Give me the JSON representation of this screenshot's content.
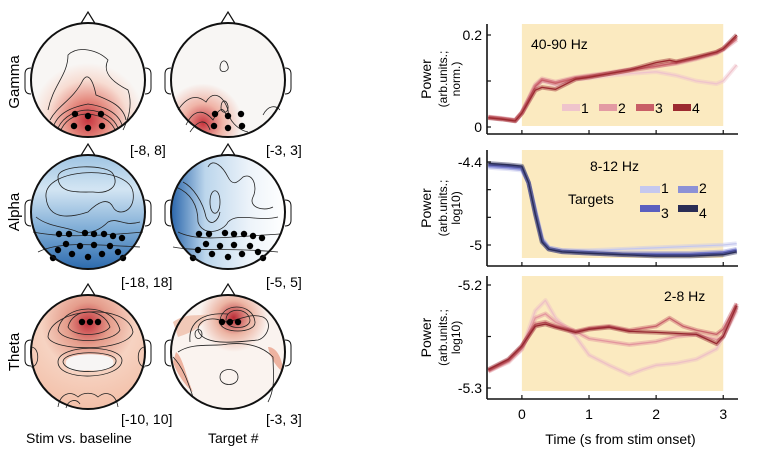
{
  "figure": {
    "topomaps": {
      "row_labels": [
        "Gamma",
        "Alpha",
        "Theta"
      ],
      "column_labels": [
        "Stim vs. baseline",
        "Target #"
      ],
      "colormaps": {
        "Gamma": "red",
        "Alpha": "blue",
        "Theta": "red"
      },
      "scale_labels": [
        [
          "[-8, 8]",
          "[-3, 3]"
        ],
        [
          "[-18, 18]",
          "[-5, 5]"
        ],
        [
          "[-10, 10]",
          "[-3, 3]"
        ]
      ],
      "colors": {
        "red_strong": "#c2303a",
        "red_light": "#f6d9cc",
        "blue_strong": "#1f5b9e",
        "blue_light": "#e3eef7",
        "outline": "#111111",
        "electrode": "#000000"
      }
    }
  },
  "chart_data": [
    {
      "type": "line",
      "title": "40-90 Hz",
      "xlabel": "",
      "ylabel": "Power",
      "ylabel_sub": "(arb.units.; norm.)",
      "xlim": [
        -0.52,
        3.22
      ],
      "ylim": [
        0,
        0.2
      ],
      "yticks": [
        0,
        0.1,
        0.2
      ],
      "ytick_labels": [
        "0",
        "",
        "0.2"
      ],
      "xticks": [
        0,
        1,
        2,
        3
      ],
      "shaded_interval": [
        0,
        3
      ],
      "shade_color": "#fbeac0",
      "grid": false,
      "legend": {
        "placement": "bottom-right",
        "title": "",
        "entries": [
          "1",
          "2",
          "3",
          "4"
        ]
      },
      "series": [
        {
          "name": "1",
          "color": "#efc4cc",
          "x": [
            -0.5,
            -0.3,
            -0.1,
            0,
            0.2,
            0.3,
            0.5,
            0.8,
            1.0,
            1.3,
            1.6,
            2.0,
            2.3,
            2.6,
            2.9,
            3.0,
            3.2
          ],
          "y": [
            0.02,
            0.018,
            0.014,
            0.03,
            0.085,
            0.1,
            0.09,
            0.104,
            0.106,
            0.112,
            0.116,
            0.12,
            0.112,
            0.1,
            0.094,
            0.1,
            0.135
          ]
        },
        {
          "name": "2",
          "color": "#e39aa3",
          "x": [
            -0.5,
            -0.3,
            -0.1,
            0,
            0.2,
            0.3,
            0.5,
            0.8,
            1.0,
            1.3,
            1.6,
            2.0,
            2.3,
            2.6,
            2.9,
            3.0,
            3.2
          ],
          "y": [
            0.022,
            0.019,
            0.015,
            0.032,
            0.092,
            0.105,
            0.098,
            0.108,
            0.112,
            0.118,
            0.125,
            0.133,
            0.138,
            0.148,
            0.16,
            0.168,
            0.19
          ]
        },
        {
          "name": "3",
          "color": "#c85e66",
          "x": [
            -0.5,
            -0.3,
            -0.1,
            0,
            0.2,
            0.3,
            0.5,
            0.8,
            1.0,
            1.3,
            1.6,
            2.0,
            2.3,
            2.6,
            2.9,
            3.0,
            3.2
          ],
          "y": [
            0.021,
            0.018,
            0.014,
            0.031,
            0.088,
            0.102,
            0.095,
            0.106,
            0.11,
            0.116,
            0.123,
            0.132,
            0.14,
            0.15,
            0.162,
            0.17,
            0.195
          ]
        },
        {
          "name": "4",
          "color": "#9c2a30",
          "x": [
            -0.5,
            -0.3,
            -0.1,
            0,
            0.2,
            0.3,
            0.5,
            0.8,
            1.0,
            1.3,
            1.6,
            2.0,
            2.2,
            2.3,
            2.6,
            2.9,
            3.0,
            3.2
          ],
          "y": [
            0.02,
            0.017,
            0.013,
            0.03,
            0.08,
            0.086,
            0.082,
            0.104,
            0.108,
            0.116,
            0.124,
            0.14,
            0.145,
            0.142,
            0.152,
            0.163,
            0.17,
            0.2
          ]
        }
      ]
    },
    {
      "type": "line",
      "title": "8-12 Hz",
      "xlabel": "",
      "ylabel": "Power",
      "ylabel_sub": "(arb.units.; log10)",
      "xlim": [
        -0.52,
        3.22
      ],
      "ylim": [
        -5.09,
        -4.34
      ],
      "yticks": [
        -4.4,
        -4.6,
        -4.8,
        -5.0
      ],
      "ytick_labels": [
        "-4.4",
        "",
        "",
        "-5"
      ],
      "xticks": [
        0,
        1,
        2,
        3
      ],
      "shaded_interval": [
        0,
        3
      ],
      "shade_color": "#fbeac0",
      "grid": false,
      "legend": {
        "placement": "right",
        "title": "Targets",
        "entries": [
          "1",
          "2",
          "3",
          "4"
        ]
      },
      "series": [
        {
          "name": "1",
          "color": "#c5c8ee",
          "x": [
            -0.5,
            -0.2,
            0,
            0.1,
            0.2,
            0.3,
            0.4,
            0.6,
            1.0,
            1.5,
            2.0,
            2.5,
            3.0,
            3.2
          ],
          "y": [
            -4.44,
            -4.45,
            -4.46,
            -4.55,
            -4.75,
            -4.95,
            -5.02,
            -5.04,
            -5.04,
            -5.03,
            -5.02,
            -5.01,
            -5.0,
            -4.99
          ]
        },
        {
          "name": "2",
          "color": "#8c91d6",
          "x": [
            -0.5,
            -0.2,
            0,
            0.1,
            0.2,
            0.3,
            0.4,
            0.6,
            1.0,
            1.5,
            2.0,
            2.5,
            3.0,
            3.2
          ],
          "y": [
            -4.43,
            -4.44,
            -4.45,
            -4.55,
            -4.76,
            -4.96,
            -5.02,
            -5.04,
            -5.05,
            -5.06,
            -5.06,
            -5.06,
            -5.05,
            -5.03
          ]
        },
        {
          "name": "3",
          "color": "#5a5fbf",
          "x": [
            -0.5,
            -0.2,
            0,
            0.1,
            0.2,
            0.3,
            0.4,
            0.6,
            1.0,
            1.5,
            2.0,
            2.5,
            3.0,
            3.2
          ],
          "y": [
            -4.42,
            -4.43,
            -4.44,
            -4.55,
            -4.77,
            -4.97,
            -5.03,
            -5.05,
            -5.06,
            -5.07,
            -5.07,
            -5.07,
            -5.06,
            -5.04
          ]
        },
        {
          "name": "4",
          "color": "#2a2d55",
          "x": [
            -0.5,
            -0.2,
            0,
            0.1,
            0.2,
            0.3,
            0.4,
            0.6,
            1.0,
            1.5,
            2.0,
            2.5,
            3.0,
            3.2
          ],
          "y": [
            -4.41,
            -4.42,
            -4.43,
            -4.55,
            -4.78,
            -4.98,
            -5.03,
            -5.05,
            -5.06,
            -5.07,
            -5.08,
            -5.08,
            -5.07,
            -5.05
          ]
        }
      ]
    },
    {
      "type": "line",
      "title": "2-8 Hz",
      "xlabel": "Time (s from stim onset)",
      "ylabel": "Power",
      "ylabel_sub": "(arb.units.; log10)",
      "xlim": [
        -0.52,
        3.22
      ],
      "ylim": [
        -5.31,
        -5.2
      ],
      "yticks": [
        -5.2,
        -5.25,
        -5.3
      ],
      "ytick_labels": [
        "-5.2",
        "",
        "-5.3"
      ],
      "xticks": [
        0,
        1,
        2,
        3
      ],
      "xtick_labels": [
        "0",
        "1",
        "2",
        "3"
      ],
      "shaded_interval": [
        0,
        3
      ],
      "shade_color": "#fbeac0",
      "grid": false,
      "legend": null,
      "series": [
        {
          "name": "1",
          "color": "#eec0c6",
          "x": [
            -0.5,
            -0.2,
            0,
            0.2,
            0.35,
            0.5,
            0.8,
            1.0,
            1.3,
            1.6,
            1.8,
            2.0,
            2.3,
            2.6,
            2.9,
            3.0,
            3.2
          ],
          "y": [
            -5.283,
            -5.275,
            -5.262,
            -5.225,
            -5.215,
            -5.232,
            -5.25,
            -5.268,
            -5.278,
            -5.287,
            -5.282,
            -5.278,
            -5.276,
            -5.272,
            -5.262,
            -5.25,
            -5.225
          ]
        },
        {
          "name": "2",
          "color": "#e3959e",
          "x": [
            -0.5,
            -0.2,
            0,
            0.2,
            0.35,
            0.5,
            0.8,
            1.0,
            1.3,
            1.6,
            2.0,
            2.3,
            2.6,
            2.9,
            3.0,
            3.2
          ],
          "y": [
            -5.284,
            -5.274,
            -5.262,
            -5.232,
            -5.228,
            -5.236,
            -5.245,
            -5.252,
            -5.255,
            -5.258,
            -5.255,
            -5.25,
            -5.248,
            -5.253,
            -5.25,
            -5.222
          ]
        },
        {
          "name": "3",
          "color": "#c8616a",
          "x": [
            -0.5,
            -0.2,
            0,
            0.2,
            0.35,
            0.5,
            0.8,
            1.0,
            1.3,
            1.6,
            2.0,
            2.2,
            2.4,
            2.6,
            2.9,
            3.0,
            3.2
          ],
          "y": [
            -5.283,
            -5.273,
            -5.26,
            -5.238,
            -5.236,
            -5.24,
            -5.245,
            -5.242,
            -5.24,
            -5.244,
            -5.24,
            -5.232,
            -5.24,
            -5.244,
            -5.248,
            -5.243,
            -5.218
          ]
        },
        {
          "name": "4",
          "color": "#962730",
          "x": [
            -0.5,
            -0.2,
            0,
            0.2,
            0.35,
            0.5,
            0.8,
            1.0,
            1.3,
            1.6,
            2.0,
            2.3,
            2.6,
            2.9,
            3.0,
            3.2
          ],
          "y": [
            -5.282,
            -5.272,
            -5.259,
            -5.24,
            -5.238,
            -5.241,
            -5.246,
            -5.243,
            -5.241,
            -5.245,
            -5.246,
            -5.247,
            -5.248,
            -5.257,
            -5.25,
            -5.22
          ]
        }
      ]
    }
  ]
}
